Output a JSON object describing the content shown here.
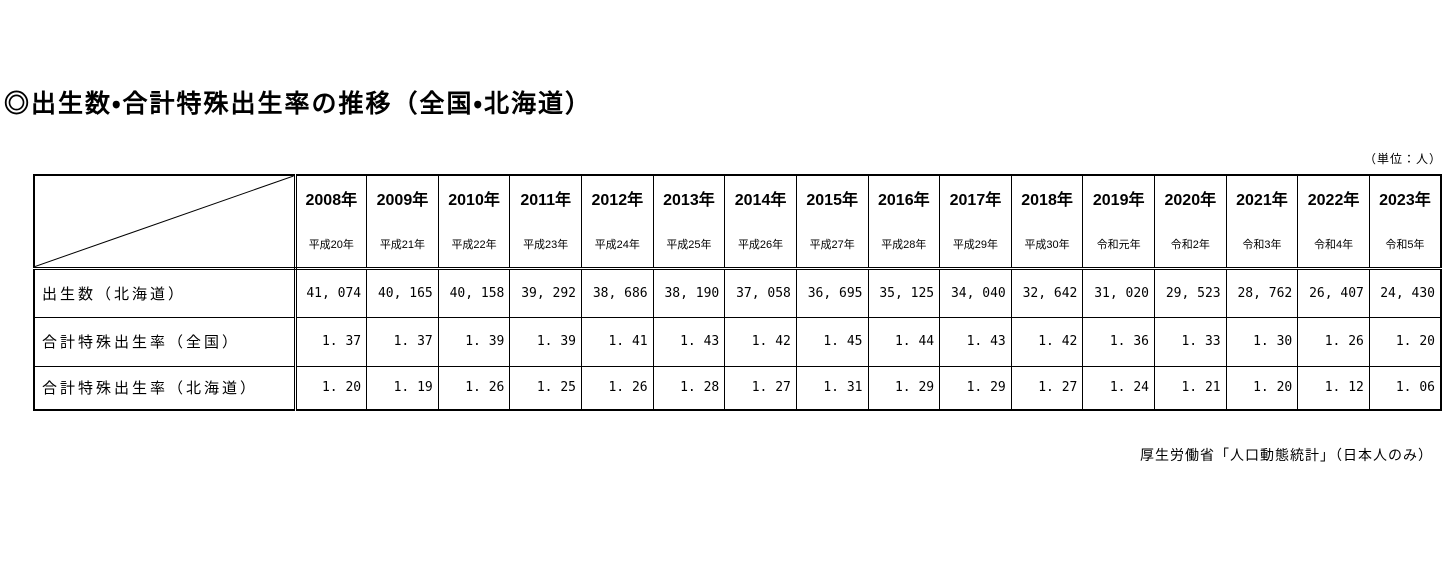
{
  "page": {
    "title": "◎出生数・合計特殊出生率の推移（全国・北海道）",
    "unit_note": "（単位：人）",
    "source_note": "厚生労働省「人口動態統計」（日本人のみ）"
  },
  "table": {
    "columns": [
      {
        "year": "2008年",
        "era": "平成20年"
      },
      {
        "year": "2009年",
        "era": "平成21年"
      },
      {
        "year": "2010年",
        "era": "平成22年"
      },
      {
        "year": "2011年",
        "era": "平成23年"
      },
      {
        "year": "2012年",
        "era": "平成24年"
      },
      {
        "year": "2013年",
        "era": "平成25年"
      },
      {
        "year": "2014年",
        "era": "平成26年"
      },
      {
        "year": "2015年",
        "era": "平成27年"
      },
      {
        "year": "2016年",
        "era": "平成28年"
      },
      {
        "year": "2017年",
        "era": "平成29年"
      },
      {
        "year": "2018年",
        "era": "平成30年"
      },
      {
        "year": "2019年",
        "era": "令和元年"
      },
      {
        "year": "2020年",
        "era": "令和2年"
      },
      {
        "year": "2021年",
        "era": "令和3年"
      },
      {
        "year": "2022年",
        "era": "令和4年"
      },
      {
        "year": "2023年",
        "era": "令和5年"
      }
    ],
    "rows": [
      {
        "label": "出生数（北海道）",
        "values": [
          "41, 074",
          "40, 165",
          "40, 158",
          "39, 292",
          "38, 686",
          "38, 190",
          "37, 058",
          "36, 695",
          "35, 125",
          "34, 040",
          "32, 642",
          "31, 020",
          "29, 523",
          "28, 762",
          "26, 407",
          "24, 430"
        ]
      },
      {
        "label": "合計特殊出生率（全国）",
        "values": [
          "1. 37",
          "1. 37",
          "1. 39",
          "1. 39",
          "1. 41",
          "1. 43",
          "1. 42",
          "1. 45",
          "1. 44",
          "1. 43",
          "1. 42",
          "1. 36",
          "1. 33",
          "1. 30",
          "1. 26",
          "1. 20"
        ]
      },
      {
        "label": "合計特殊出生率（北海道）",
        "values": [
          "1. 20",
          "1. 19",
          "1. 26",
          "1. 25",
          "1. 26",
          "1. 28",
          "1. 27",
          "1. 31",
          "1. 29",
          "1. 29",
          "1. 27",
          "1. 24",
          "1. 21",
          "1. 20",
          "1. 12",
          "1. 06"
        ]
      }
    ]
  },
  "chart_data": {
    "type": "table",
    "title": "出生数・合計特殊出生率の推移（全国・北海道）",
    "unit": "人",
    "categories": [
      "2008",
      "2009",
      "2010",
      "2011",
      "2012",
      "2013",
      "2014",
      "2015",
      "2016",
      "2017",
      "2018",
      "2019",
      "2020",
      "2021",
      "2022",
      "2023"
    ],
    "categories_era": [
      "平成20年",
      "平成21年",
      "平成22年",
      "平成23年",
      "平成24年",
      "平成25年",
      "平成26年",
      "平成27年",
      "平成28年",
      "平成29年",
      "平成30年",
      "令和元年",
      "令和2年",
      "令和3年",
      "令和4年",
      "令和5年"
    ],
    "series": [
      {
        "name": "出生数（北海道）",
        "values": [
          41074,
          40165,
          40158,
          39292,
          38686,
          38190,
          37058,
          36695,
          35125,
          34040,
          32642,
          31020,
          29523,
          28762,
          26407,
          24430
        ]
      },
      {
        "name": "合計特殊出生率（全国）",
        "values": [
          1.37,
          1.37,
          1.39,
          1.39,
          1.41,
          1.43,
          1.42,
          1.45,
          1.44,
          1.43,
          1.42,
          1.36,
          1.33,
          1.3,
          1.26,
          1.2
        ]
      },
      {
        "name": "合計特殊出生率（北海道）",
        "values": [
          1.2,
          1.19,
          1.26,
          1.25,
          1.26,
          1.28,
          1.27,
          1.31,
          1.29,
          1.29,
          1.27,
          1.24,
          1.21,
          1.2,
          1.12,
          1.06
        ]
      }
    ],
    "source": "厚生労働省「人口動態統計」（日本人のみ）"
  }
}
